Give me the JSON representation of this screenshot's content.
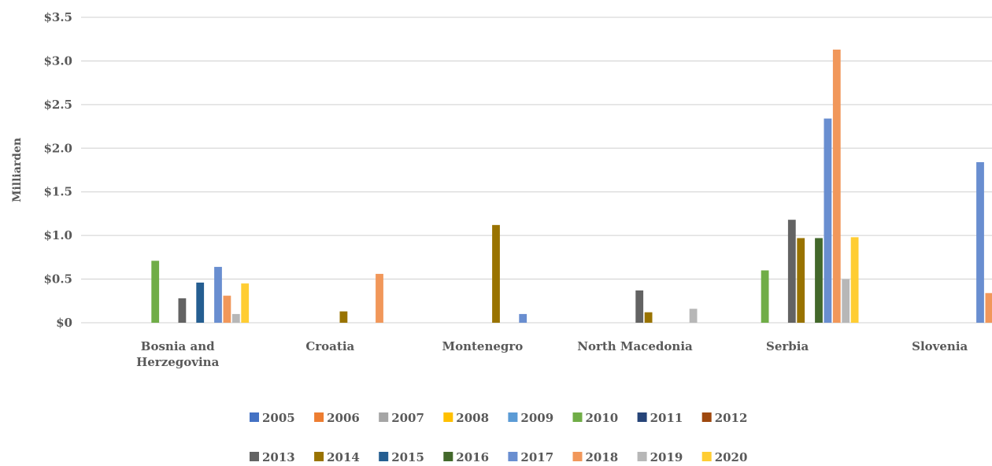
{
  "chart_data": {
    "type": "bar",
    "title": "",
    "xlabel": "",
    "ylabel": "Milliarden",
    "ylim": [
      0,
      3.5
    ],
    "ytick_values": [
      0,
      0.5,
      1.0,
      1.5,
      2.0,
      2.5,
      3.0,
      3.5
    ],
    "ytick_labels": [
      "$0",
      "$0.5",
      "$1.0",
      "$1.5",
      "$2.0",
      "$2.5",
      "$3.0",
      "$3.5"
    ],
    "grid": true,
    "legend_position": "bottom",
    "categories": [
      "Bosnia and Herzegovina",
      "Croatia",
      "Montenegro",
      "North Macedonia",
      "Serbia",
      "Slovenia"
    ],
    "series": [
      {
        "name": "2005",
        "color": "#4472C4",
        "values": [
          0,
          0,
          0,
          0,
          0,
          0
        ]
      },
      {
        "name": "2006",
        "color": "#ED7D31",
        "values": [
          0,
          0,
          0,
          0,
          0,
          0
        ]
      },
      {
        "name": "2007",
        "color": "#A5A5A5",
        "values": [
          0,
          0,
          0,
          0,
          0,
          0
        ]
      },
      {
        "name": "2008",
        "color": "#FFC000",
        "values": [
          0,
          0,
          0,
          0,
          0,
          0
        ]
      },
      {
        "name": "2009",
        "color": "#5B9BD5",
        "values": [
          0,
          0,
          0,
          0,
          0,
          0
        ]
      },
      {
        "name": "2010",
        "color": "#70AD47",
        "values": [
          0.71,
          0,
          0,
          0,
          0.6,
          0
        ]
      },
      {
        "name": "2011",
        "color": "#264478",
        "values": [
          0,
          0,
          0,
          0,
          0,
          0
        ]
      },
      {
        "name": "2012",
        "color": "#9E480E",
        "values": [
          0,
          0,
          0,
          0,
          0,
          0
        ]
      },
      {
        "name": "2013",
        "color": "#636363",
        "values": [
          0.28,
          0,
          0,
          0.37,
          1.18,
          0
        ]
      },
      {
        "name": "2014",
        "color": "#997300",
        "values": [
          0,
          0.13,
          1.12,
          0.12,
          0.97,
          0
        ]
      },
      {
        "name": "2015",
        "color": "#255E91",
        "values": [
          0.46,
          0,
          0,
          0,
          0,
          0
        ]
      },
      {
        "name": "2016",
        "color": "#43682B",
        "values": [
          0,
          0,
          0,
          0,
          0.97,
          0
        ]
      },
      {
        "name": "2017",
        "color": "#698ED0",
        "values": [
          0.64,
          0,
          0.1,
          0,
          2.34,
          1.84
        ]
      },
      {
        "name": "2018",
        "color": "#F1975A",
        "values": [
          0.31,
          0.56,
          0,
          0,
          3.13,
          0.34
        ]
      },
      {
        "name": "2019",
        "color": "#B7B7B7",
        "values": [
          0.1,
          0,
          0,
          0.16,
          0.5,
          0
        ]
      },
      {
        "name": "2020",
        "color": "#FFCD33",
        "values": [
          0.45,
          0,
          0,
          0,
          0.98,
          0
        ]
      }
    ]
  }
}
